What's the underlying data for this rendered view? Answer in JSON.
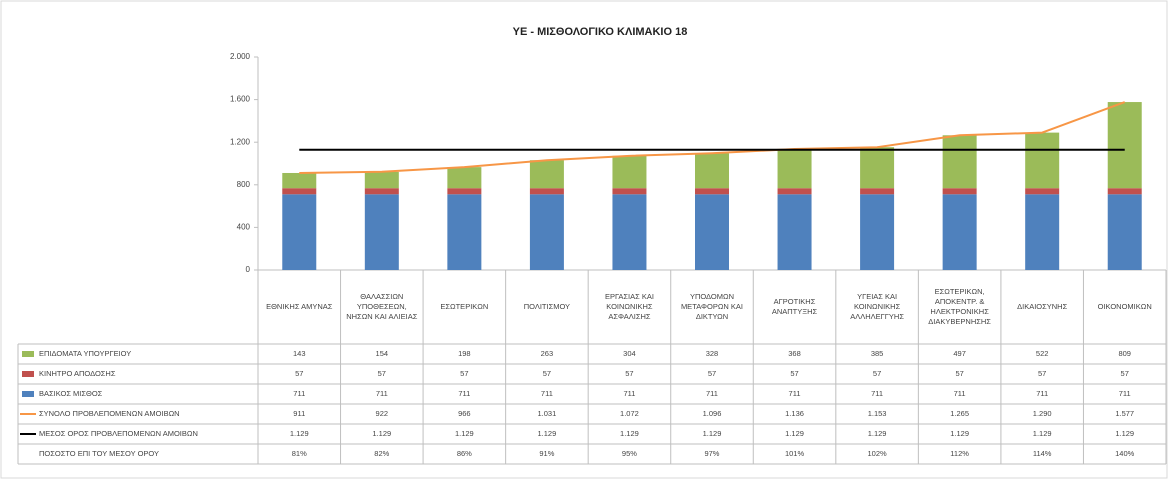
{
  "chart_data": {
    "type": "bar",
    "stacked": true,
    "title": "ΥΕ - ΜΙΣΘΟΛΟΓΙΚΟ ΚΛΙΜΑΚΙΟ 18",
    "categories": [
      "ΕΘΝΙΚΗΣ ΑΜΥΝΑΣ",
      "ΘΑΛΑΣΣΙΩΝ ΥΠΟΘΕΣΕΩΝ, ΝΗΣΩΝ ΚΑΙ ΑΛΙΕΙΑΣ",
      "ΕΣΩΤΕΡΙΚΩΝ",
      "ΠΟΛΙΤΙΣΜΟΥ",
      "ΕΡΓΑΣΙΑΣ ΚΑΙ ΚΟΙΝΩΝΙΚΗΣ ΑΣΦΑΛΙΣΗΣ",
      "ΥΠΟΔΟΜΩΝ ΜΕΤΑΦΟΡΩΝ ΚΑΙ ΔΙΚΤΥΩΝ",
      "ΑΓΡΟΤΙΚΗΣ ΑΝΑΠΤΥΞΗΣ",
      "ΥΓΕΙΑΣ ΚΑΙ ΚΟΙΝΩΝΙΚΗΣ ΑΛΛΗΛΕΓΓΥΗΣ",
      "ΕΣΩΤΕΡΙΚΩΝ, ΑΠΟΚΕΝΤΡ. & ΗΛΕΚΤΡΟΝΙΚΗΣ ΔΙΑΚΥΒΕΡΝΗΣΗΣ",
      "ΔΙΚΑΙΟΣΥΝΗΣ",
      "ΟΙΚΟΝΟΜΙΚΩΝ"
    ],
    "series": [
      {
        "name": "ΕΠΙΔΟΜΑΤΑ ΥΠΟΥΡΓΕΙΟΥ",
        "color": "#9bbb59",
        "kind": "bar",
        "values": [
          143,
          154,
          198,
          263,
          304,
          328,
          368,
          385,
          497,
          522,
          809
        ]
      },
      {
        "name": "ΚΙΝΗΤΡΟ ΑΠΟΔΟΣΗΣ",
        "color": "#c0504d",
        "kind": "bar",
        "values": [
          57,
          57,
          57,
          57,
          57,
          57,
          57,
          57,
          57,
          57,
          57
        ]
      },
      {
        "name": "ΒΑΣΙΚΟΣ ΜΙΣΘΟΣ",
        "color": "#4f81bd",
        "kind": "bar",
        "values": [
          711,
          711,
          711,
          711,
          711,
          711,
          711,
          711,
          711,
          711,
          711
        ]
      },
      {
        "name": "ΣΥΝΟΛΟ ΠΡΟΒΛΕΠΟΜΕΝΩΝ ΑΜΟΙΒΩΝ",
        "color": "#f79646",
        "kind": "line",
        "values": [
          911,
          922,
          966,
          1031,
          1072,
          1096,
          1136,
          1153,
          1265,
          1290,
          1577
        ],
        "value_labels": [
          "911",
          "922",
          "966",
          "1.031",
          "1.072",
          "1.096",
          "1.136",
          "1.153",
          "1.265",
          "1.290",
          "1.577"
        ]
      },
      {
        "name": "ΜΕΣΟΣ ΟΡΟΣ ΠΡΟΒΛΕΠΟΜΕΝΩΝ ΑΜΟΙΒΩΝ",
        "color": "#000000",
        "kind": "line",
        "values": [
          1129,
          1129,
          1129,
          1129,
          1129,
          1129,
          1129,
          1129,
          1129,
          1129,
          1129
        ],
        "value_labels": [
          "1.129",
          "1.129",
          "1.129",
          "1.129",
          "1.129",
          "1.129",
          "1.129",
          "1.129",
          "1.129",
          "1.129",
          "1.129"
        ]
      }
    ],
    "percent_row": {
      "name": "ΠΟΣΟΣΤΟ ΕΠΙ ΤΟΥ ΜΕΣΟΥ ΟΡΟΥ",
      "values": [
        81,
        82,
        86,
        91,
        95,
        97,
        101,
        102,
        112,
        114,
        140
      ],
      "value_labels": [
        "81%",
        "82%",
        "86%",
        "91%",
        "95%",
        "97%",
        "101%",
        "102%",
        "112%",
        "114%",
        "140%"
      ]
    },
    "ylim": [
      0,
      2000
    ],
    "yticks": [
      0,
      400,
      800,
      {
        "value": 1200,
        "label": "1.200"
      },
      {
        "value": 1600,
        "label": "1.600"
      },
      {
        "value": 2000,
        "label": "2.000"
      }
    ],
    "grid": false
  }
}
